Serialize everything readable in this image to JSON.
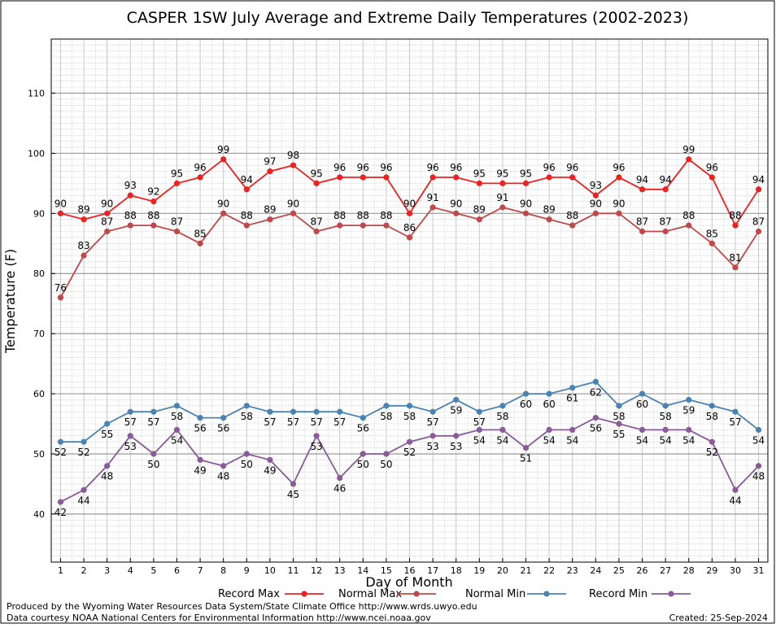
{
  "chart_data": {
    "type": "line",
    "title": "CASPER 1SW July Average and Extreme Daily Temperatures (2002-2023)",
    "xlabel": "Day of Month",
    "ylabel": "Temperature (F)",
    "x": [
      1,
      2,
      3,
      4,
      5,
      6,
      7,
      8,
      9,
      10,
      11,
      12,
      13,
      14,
      15,
      16,
      17,
      18,
      19,
      20,
      21,
      22,
      23,
      24,
      25,
      26,
      27,
      28,
      29,
      30,
      31
    ],
    "xlim": [
      0.6,
      31.4
    ],
    "ylim": [
      32,
      119
    ],
    "yticks": [
      40,
      50,
      60,
      70,
      80,
      90,
      100,
      110
    ],
    "grid": true,
    "legend": "bottom",
    "series": [
      {
        "name": "Record Max",
        "color": "#ee2020",
        "labels": "above",
        "values": [
          90,
          89,
          90,
          93,
          92,
          95,
          96,
          99,
          94,
          97,
          98,
          95,
          96,
          96,
          96,
          90,
          96,
          96,
          95,
          95,
          95,
          96,
          96,
          93,
          96,
          94,
          94,
          99,
          96,
          88,
          94
        ]
      },
      {
        "name": "Normal Max",
        "color": "#c04848",
        "labels": "above",
        "values": [
          76,
          83,
          87,
          88,
          88,
          87,
          85,
          90,
          88,
          89,
          90,
          87,
          88,
          88,
          88,
          86,
          91,
          90,
          89,
          91,
          90,
          89,
          88,
          90,
          90,
          87,
          87,
          88,
          85,
          81,
          87
        ]
      },
      {
        "name": "Normal Min",
        "color": "#4a82b4",
        "labels": "below",
        "values": [
          52,
          52,
          55,
          57,
          57,
          58,
          56,
          56,
          58,
          57,
          57,
          57,
          57,
          56,
          58,
          58,
          57,
          59,
          57,
          58,
          60,
          60,
          61,
          62,
          58,
          60,
          58,
          59,
          58,
          57,
          54
        ]
      },
      {
        "name": "Record Min",
        "color": "#8a5a9a",
        "labels": "below",
        "values": [
          42,
          44,
          48,
          53,
          50,
          54,
          49,
          48,
          50,
          49,
          45,
          53,
          46,
          50,
          50,
          52,
          53,
          53,
          54,
          54,
          51,
          54,
          54,
          56,
          55,
          54,
          54,
          54,
          52,
          44,
          48
        ]
      }
    ]
  },
  "footer": {
    "produced_by": "Produced by the Wyoming Water Resources Data System/State Climate Office http://www.wrds.uwyo.edu",
    "data_courtesy": "Data courtesy NOAA National Centers for Environmental Information http://www.ncei.noaa.gov",
    "created": "Created:  25-Sep-2024"
  }
}
